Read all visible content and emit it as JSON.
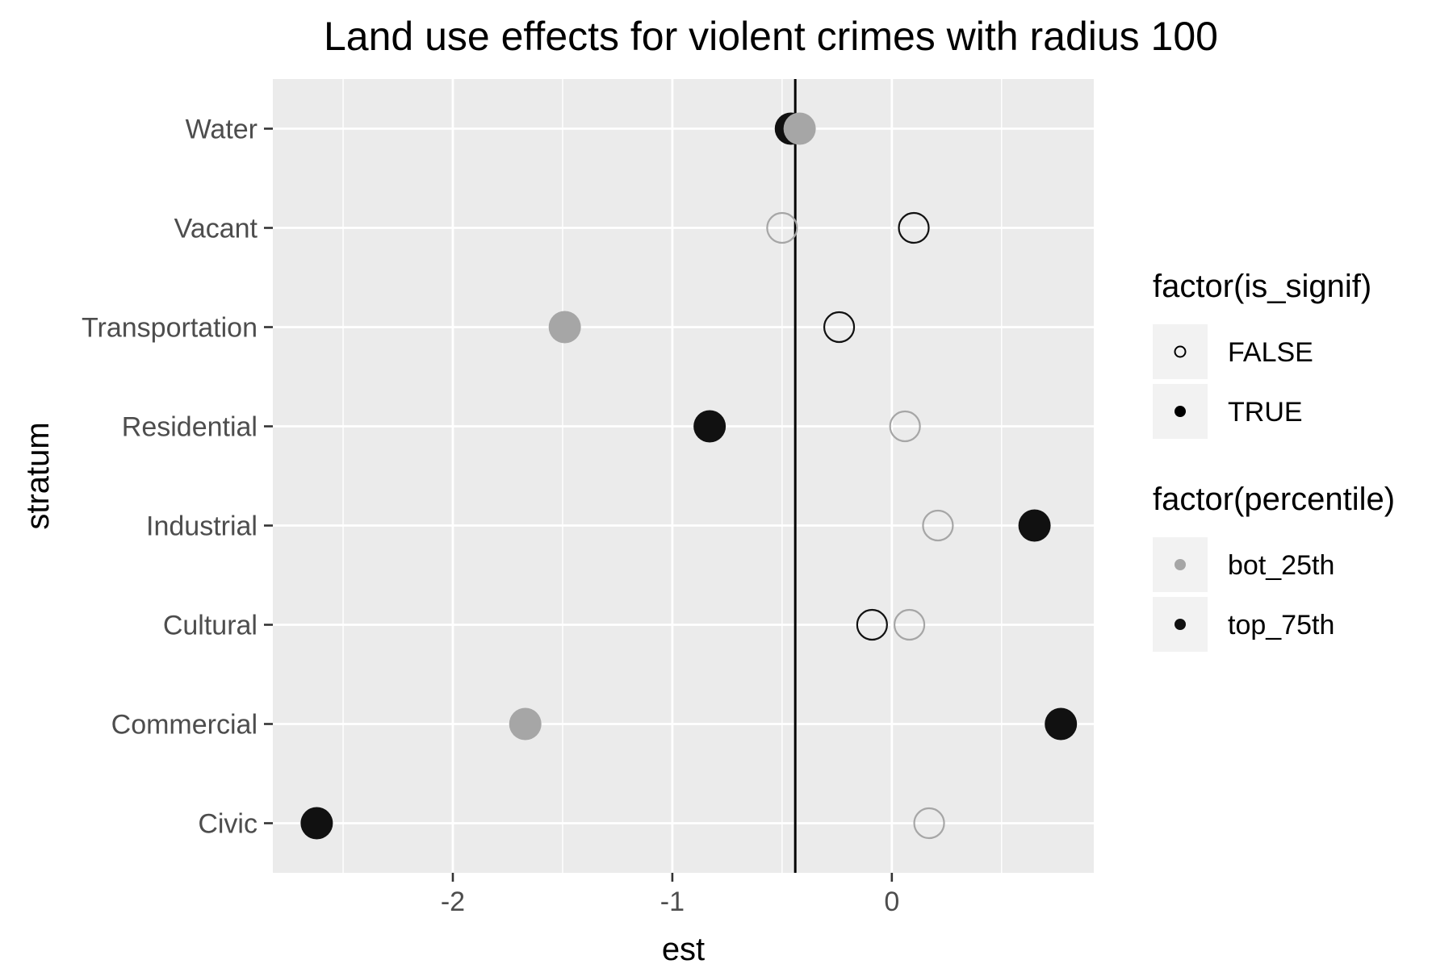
{
  "chart_data": {
    "type": "scatter",
    "title": "Land use effects for violent crimes with radius 100",
    "xlabel": "est",
    "ylabel": "stratum",
    "xlim": [
      -2.82,
      0.92
    ],
    "x_ticks": [
      -2,
      -1,
      0
    ],
    "x_tick_labels": [
      "-2",
      "-1",
      "0"
    ],
    "categories": [
      "Water",
      "Vacant",
      "Transportation",
      "Residential",
      "Industrial",
      "Cultural",
      "Commercial",
      "Civic"
    ],
    "reference_line_x": -0.44,
    "grid": true,
    "legend_position": "right",
    "colors": {
      "bot_25th": "#a6a6a6",
      "top_75th": "#111111",
      "panel": "#ebebeb",
      "grid": "#ffffff"
    },
    "legends": [
      {
        "title": "factor(is_signif)",
        "entries": [
          {
            "label": "FALSE",
            "filled": false
          },
          {
            "label": "TRUE",
            "filled": true
          }
        ]
      },
      {
        "title": "factor(percentile)",
        "entries": [
          {
            "label": "bot_25th",
            "color": "#a6a6a6"
          },
          {
            "label": "top_75th",
            "color": "#111111"
          }
        ]
      }
    ],
    "points": [
      {
        "stratum": "Water",
        "est": -0.46,
        "percentile": "top_75th",
        "is_signif": true
      },
      {
        "stratum": "Water",
        "est": -0.42,
        "percentile": "bot_25th",
        "is_signif": true
      },
      {
        "stratum": "Vacant",
        "est": -0.5,
        "percentile": "bot_25th",
        "is_signif": false
      },
      {
        "stratum": "Vacant",
        "est": 0.1,
        "percentile": "top_75th",
        "is_signif": false
      },
      {
        "stratum": "Transportation",
        "est": -1.49,
        "percentile": "bot_25th",
        "is_signif": true
      },
      {
        "stratum": "Transportation",
        "est": -0.24,
        "percentile": "top_75th",
        "is_signif": false
      },
      {
        "stratum": "Residential",
        "est": -0.83,
        "percentile": "top_75th",
        "is_signif": true
      },
      {
        "stratum": "Residential",
        "est": 0.06,
        "percentile": "bot_25th",
        "is_signif": false
      },
      {
        "stratum": "Industrial",
        "est": 0.21,
        "percentile": "bot_25th",
        "is_signif": false
      },
      {
        "stratum": "Industrial",
        "est": 0.65,
        "percentile": "top_75th",
        "is_signif": true
      },
      {
        "stratum": "Cultural",
        "est": -0.09,
        "percentile": "top_75th",
        "is_signif": false
      },
      {
        "stratum": "Cultural",
        "est": 0.08,
        "percentile": "bot_25th",
        "is_signif": false
      },
      {
        "stratum": "Commercial",
        "est": -1.67,
        "percentile": "bot_25th",
        "is_signif": true
      },
      {
        "stratum": "Commercial",
        "est": 0.77,
        "percentile": "top_75th",
        "is_signif": true
      },
      {
        "stratum": "Civic",
        "est": -2.62,
        "percentile": "top_75th",
        "is_signif": true
      },
      {
        "stratum": "Civic",
        "est": 0.17,
        "percentile": "bot_25th",
        "is_signif": false
      }
    ]
  }
}
